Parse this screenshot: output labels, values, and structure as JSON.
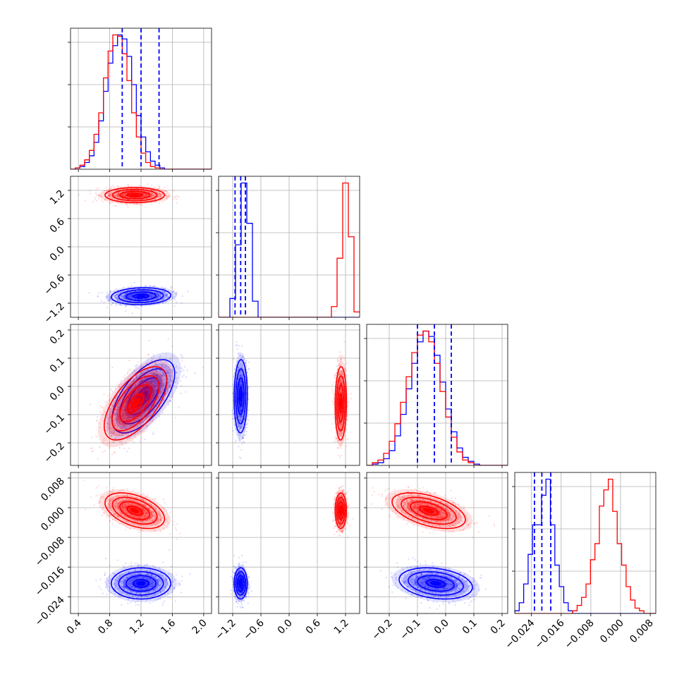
{
  "chart_data": {
    "type": "corner",
    "colors": {
      "series_blue": "#0000ff",
      "series_red": "#ff0000"
    },
    "grid": true,
    "parameters": [
      {
        "range": [
          0.3,
          2.1
        ],
        "ticks": [
          "0.4",
          "0.8",
          "1.2",
          "1.6",
          "2.0"
        ],
        "tick_values": [
          0.4,
          0.8,
          1.2,
          1.6,
          2.0
        ],
        "rotated": false
      },
      {
        "range": [
          -1.5,
          1.5
        ],
        "ticks": [
          "−1.2",
          "−0.6",
          "0.0",
          "0.6",
          "1.2"
        ],
        "tick_values": [
          -1.2,
          -0.6,
          0.0,
          0.6,
          1.2
        ],
        "rotated": false
      },
      {
        "range": [
          -0.28,
          0.22
        ],
        "ticks": [
          "−0.2",
          "−0.1",
          "0.0",
          "0.1",
          "0.2"
        ],
        "tick_values": [
          -0.2,
          -0.1,
          0.0,
          0.1,
          0.2
        ],
        "rotated": true
      },
      {
        "range": [
          -0.0285,
          0.0095
        ],
        "ticks": [
          "−0.024",
          "−0.016",
          "−0.008",
          "0.000",
          "0.008"
        ],
        "tick_values": [
          -0.024,
          -0.016,
          -0.008,
          0.0,
          0.008
        ],
        "rotated": true
      }
    ],
    "y_tick_labels": [
      null,
      {
        "labels": [
          "1.2",
          "0.6",
          "0.0",
          "−0.6",
          "−1.2"
        ],
        "values": [
          1.2,
          0.6,
          0.0,
          -0.6,
          -1.2
        ]
      },
      {
        "labels": [
          "0.2",
          "0.1",
          "0.0",
          "−0.1",
          "−0.2"
        ],
        "values": [
          0.2,
          0.1,
          0.0,
          -0.1,
          -0.2
        ]
      },
      {
        "labels": [
          "0.008",
          "0.000",
          "−0.008",
          "−0.016",
          "−0.024"
        ],
        "values": [
          0.008,
          0.0,
          -0.008,
          -0.016,
          -0.024
        ]
      }
    ],
    "histograms": [
      {
        "bins": [
          0.3,
          0.36,
          0.42,
          0.48,
          0.54,
          0.6,
          0.66,
          0.72,
          0.78,
          0.84,
          0.9,
          0.96,
          1.02,
          1.08,
          1.14,
          1.2,
          1.26,
          1.32,
          1.38,
          1.44,
          1.5,
          1.56,
          1.62,
          1.68,
          1.74,
          1.8,
          1.86,
          1.92,
          1.98,
          2.04,
          2.1
        ],
        "blue": [
          0,
          1,
          2,
          5,
          10,
          20,
          36,
          58,
          79,
          92,
          100,
          97,
          84,
          63,
          40,
          24,
          13,
          6,
          3,
          1,
          0,
          0,
          0,
          0,
          0,
          0,
          0,
          0,
          0,
          0
        ],
        "red": [
          0,
          1,
          3,
          7,
          14,
          26,
          42,
          68,
          88,
          100,
          99,
          86,
          66,
          42,
          24,
          12,
          5,
          2,
          1,
          0,
          0,
          0,
          0,
          0,
          0,
          0,
          0,
          0,
          0,
          0
        ],
        "quantiles": [
          0.96,
          1.2,
          1.43
        ]
      },
      {
        "bins": [
          -1.5,
          -1.38,
          -1.26,
          -1.14,
          -1.02,
          -0.9,
          -0.78,
          -0.66,
          -0.54,
          -0.42,
          -0.3,
          -0.18,
          -0.06,
          0.06,
          0.18,
          0.3,
          0.42,
          0.54,
          0.66,
          0.78,
          0.9,
          1.02,
          1.14,
          1.26,
          1.38,
          1.5
        ],
        "blue": [
          0,
          0,
          14,
          54,
          100,
          70,
          12,
          0,
          0,
          0,
          0,
          0,
          0,
          0,
          0,
          0,
          0,
          0,
          0,
          0,
          0,
          0,
          0,
          0,
          0
        ],
        "red": [
          0,
          0,
          0,
          0,
          0,
          0,
          0,
          0,
          0,
          0,
          0,
          0,
          0,
          0,
          0,
          0,
          0,
          0,
          0,
          0,
          8,
          44,
          100,
          60,
          4
        ],
        "quantiles": [
          -1.15,
          -1.03,
          -0.93
        ]
      },
      {
        "bins": [
          -0.28,
          -0.26,
          -0.24,
          -0.22,
          -0.2,
          -0.18,
          -0.16,
          -0.14,
          -0.12,
          -0.1,
          -0.08,
          -0.06,
          -0.04,
          -0.02,
          0.0,
          0.02,
          0.04,
          0.06,
          0.08,
          0.1,
          0.12,
          0.14,
          0.16,
          0.18,
          0.2,
          0.22
        ],
        "blue": [
          0,
          1,
          2,
          5,
          11,
          22,
          38,
          57,
          76,
          92,
          100,
          96,
          82,
          62,
          42,
          25,
          13,
          6,
          3,
          1,
          0,
          0,
          0,
          0,
          0
        ],
        "red": [
          0,
          2,
          4,
          9,
          18,
          31,
          47,
          66,
          84,
          97,
          100,
          92,
          76,
          55,
          36,
          21,
          10,
          4,
          2,
          0,
          0,
          0,
          0,
          0,
          0
        ],
        "quantiles": [
          -0.1,
          -0.04,
          0.02
        ]
      },
      {
        "bins": [
          -0.0285,
          -0.0273,
          -0.0261,
          -0.0249,
          -0.0237,
          -0.0225,
          -0.0213,
          -0.0201,
          -0.0189,
          -0.0177,
          -0.0165,
          -0.0153,
          -0.0141,
          -0.0129,
          -0.0117,
          -0.0105,
          -0.0093,
          -0.0081,
          -0.0069,
          -0.0057,
          -0.0045,
          -0.0033,
          -0.0021,
          -0.0009,
          0.0003,
          0.0015,
          0.0027,
          0.0039,
          0.0051,
          0.0063,
          0.0075,
          0.0087,
          0.0095
        ],
        "blue": [
          2,
          8,
          22,
          44,
          66,
          66,
          88,
          100,
          66,
          36,
          20,
          8,
          2,
          0,
          0,
          0,
          0,
          0,
          0,
          0,
          0,
          0,
          0,
          0,
          0,
          0,
          0,
          0,
          0,
          0,
          0,
          0
        ],
        "red": [
          0,
          0,
          0,
          0,
          0,
          0,
          0,
          0,
          0,
          0,
          0,
          0,
          0,
          2,
          6,
          12,
          22,
          40,
          52,
          80,
          92,
          100,
          76,
          52,
          36,
          20,
          10,
          4,
          2,
          0,
          0,
          0
        ],
        "quantiles": [
          -0.0232,
          -0.0212,
          -0.0188
        ]
      }
    ],
    "blobs": [
      {
        "row": 1,
        "col": 0,
        "blue": {
          "mx": 1.2,
          "my": -1.05,
          "sx": 0.19,
          "sy": 0.09,
          "rho": 0.1
        },
        "red": {
          "mx": 1.12,
          "my": 1.1,
          "sx": 0.19,
          "sy": 0.08,
          "rho": 0.0
        }
      },
      {
        "row": 2,
        "col": 0,
        "blue": {
          "mx": 1.23,
          "my": -0.035,
          "sx": 0.2,
          "sy": 0.065,
          "rho": 0.62
        },
        "red": {
          "mx": 1.13,
          "my": -0.06,
          "sx": 0.2,
          "sy": 0.065,
          "rho": 0.62
        }
      },
      {
        "row": 2,
        "col": 1,
        "blue": {
          "mx": -1.03,
          "my": -0.035,
          "sx": 0.07,
          "sy": 0.065,
          "rho": 0.05
        },
        "red": {
          "mx": 1.1,
          "my": -0.06,
          "sx": 0.06,
          "sy": 0.065,
          "rho": 0.05
        }
      },
      {
        "row": 3,
        "col": 0,
        "blue": {
          "mx": 1.2,
          "my": -0.0204,
          "sx": 0.19,
          "sy": 0.0021,
          "rho": 0.0
        },
        "red": {
          "mx": 1.12,
          "my": -0.0008,
          "sx": 0.19,
          "sy": 0.0024,
          "rho": -0.45
        }
      },
      {
        "row": 3,
        "col": 1,
        "blue": {
          "mx": -1.03,
          "my": -0.0204,
          "sx": 0.07,
          "sy": 0.0021,
          "rho": 0.0
        },
        "red": {
          "mx": 1.1,
          "my": -0.0008,
          "sx": 0.06,
          "sy": 0.0024,
          "rho": 0.0
        }
      },
      {
        "row": 3,
        "col": 2,
        "blue": {
          "mx": -0.035,
          "my": -0.0204,
          "sx": 0.065,
          "sy": 0.0021,
          "rho": -0.25
        },
        "red": {
          "mx": -0.06,
          "my": -0.0008,
          "sx": 0.065,
          "sy": 0.0024,
          "rho": -0.5
        }
      }
    ]
  }
}
